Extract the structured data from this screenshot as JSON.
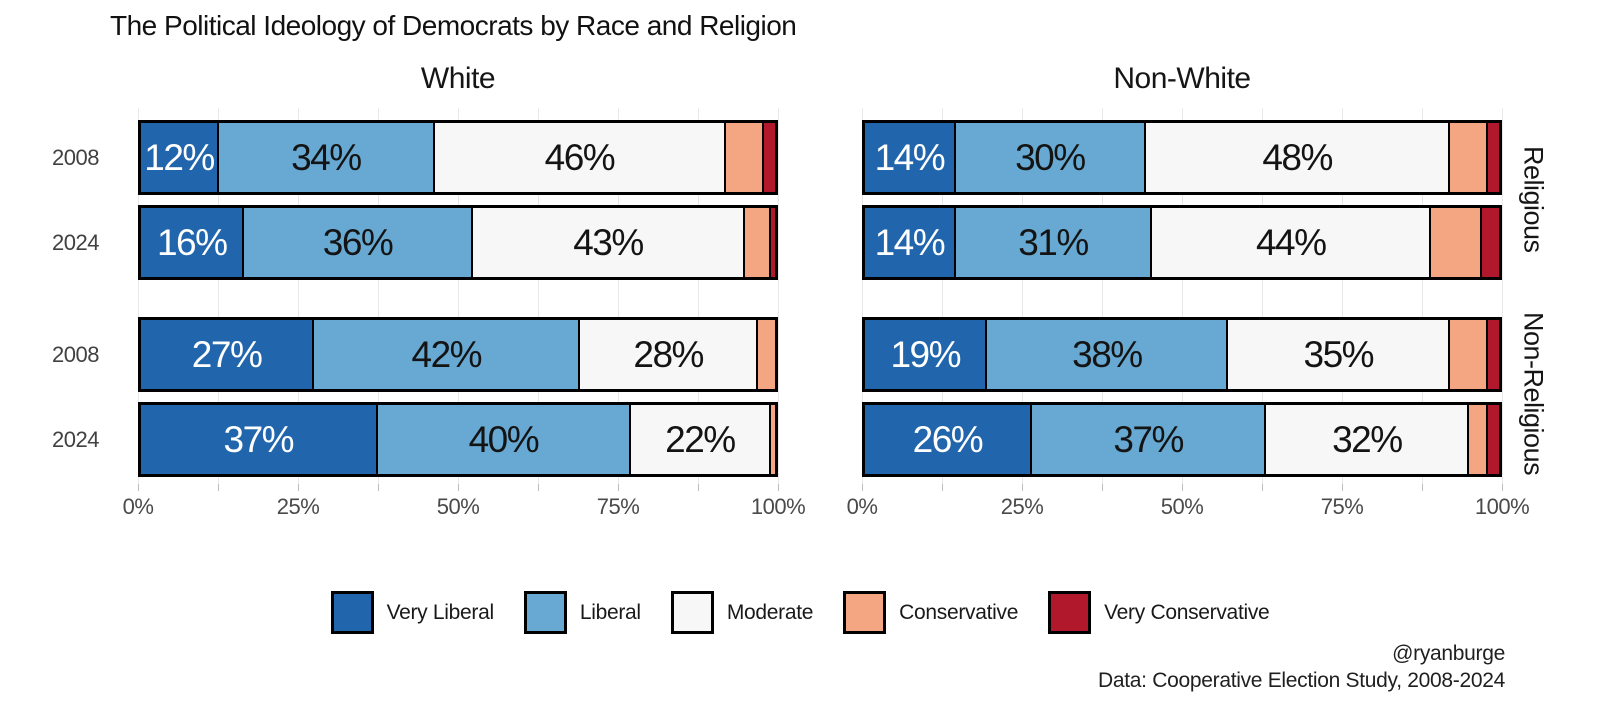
{
  "title": "The Political Ideology of Democrats by Race and Religion",
  "caption": {
    "handle": "@ryanburge",
    "source": "Data: Cooperative Election Study, 2008-2024"
  },
  "chart_data": {
    "type": "bar",
    "orientation": "horizontal",
    "stacked": true,
    "unit": "percent",
    "xlim": [
      0,
      100
    ],
    "x_ticks": [
      "0%",
      "25%",
      "50%",
      "75%",
      "100%"
    ],
    "minor_tick_step_pct": 12.5,
    "grid": true,
    "legend_position": "bottom",
    "col_facets": [
      {
        "label": "White"
      },
      {
        "label": "Non-White"
      }
    ],
    "row_facets": [
      {
        "label": "Religious"
      },
      {
        "label": "Non-Religious"
      }
    ],
    "legend": [
      {
        "label": "Very Liberal",
        "color": "#2166ac",
        "text_color": "#ffffff"
      },
      {
        "label": "Liberal",
        "color": "#67a9d2",
        "text_color": "#141414"
      },
      {
        "label": "Moderate",
        "color": "#f7f7f7",
        "text_color": "#141414"
      },
      {
        "label": "Conservative",
        "color": "#f4a582",
        "text_color": "#141414"
      },
      {
        "label": "Very Conservative",
        "color": "#b2182b",
        "text_color": "#ffffff"
      }
    ],
    "label_min_pct": 10,
    "bars": [
      {
        "col_facet": "White",
        "row_facet": "Religious",
        "year": "2008",
        "values": [
          12,
          34,
          46,
          6,
          2
        ]
      },
      {
        "col_facet": "White",
        "row_facet": "Religious",
        "year": "2024",
        "values": [
          16,
          36,
          43,
          4,
          1
        ]
      },
      {
        "col_facet": "White",
        "row_facet": "Non-Religious",
        "year": "2008",
        "values": [
          27,
          42,
          28,
          3,
          0
        ]
      },
      {
        "col_facet": "White",
        "row_facet": "Non-Religious",
        "year": "2024",
        "values": [
          37,
          40,
          22,
          1,
          0
        ]
      },
      {
        "col_facet": "Non-White",
        "row_facet": "Religious",
        "year": "2008",
        "values": [
          14,
          30,
          48,
          6,
          2
        ]
      },
      {
        "col_facet": "Non-White",
        "row_facet": "Religious",
        "year": "2024",
        "values": [
          14,
          31,
          44,
          8,
          3
        ]
      },
      {
        "col_facet": "Non-White",
        "row_facet": "Non-Religious",
        "year": "2008",
        "values": [
          19,
          38,
          35,
          6,
          2
        ]
      },
      {
        "col_facet": "Non-White",
        "row_facet": "Non-Religious",
        "year": "2024",
        "values": [
          26,
          37,
          32,
          3,
          2
        ]
      }
    ]
  }
}
